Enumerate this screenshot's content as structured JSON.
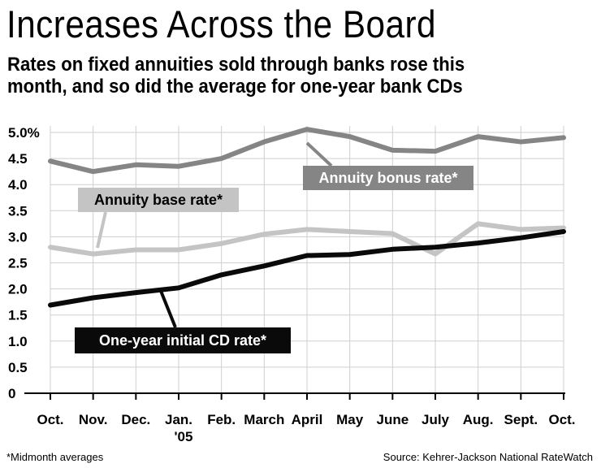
{
  "title": "Increases Across the Board",
  "subtitle_line1": "Rates on fixed annuities sold through banks rose this",
  "subtitle_line2": "month, and so did the average for one-year bank CDs",
  "footnote": "*Midmonth averages",
  "source": "Source: Kehrer-Jackson National RateWatch",
  "colors": {
    "bonus": "#858585",
    "base": "#c4c4c4",
    "cd": "#0a0a0a",
    "grid": "#cfcfcf"
  },
  "chart_data": {
    "type": "line",
    "title": "Increases Across the Board",
    "xlabel": "",
    "ylabel": "",
    "ylim": [
      0,
      5.0
    ],
    "grid": true,
    "y_ticks": [
      "5.0%",
      "4.5",
      "4.0",
      "3.5",
      "3.0",
      "2.5",
      "2.0",
      "1.5",
      "1.0",
      "0.5",
      "0"
    ],
    "categories": [
      "Oct.",
      "Nov.",
      "Dec.",
      "Jan.",
      "Feb.",
      "March",
      "April",
      "May",
      "June",
      "July",
      "Aug.",
      "Sept.",
      "Oct."
    ],
    "category_sublabels": [
      "",
      "",
      "",
      "'05",
      "",
      "",
      "",
      "",
      "",
      "",
      "",
      "",
      ""
    ],
    "series": [
      {
        "name": "Annuity bonus rate*",
        "color": "#858585",
        "values": [
          4.45,
          4.25,
          4.38,
          4.35,
          4.5,
          4.82,
          5.06,
          4.92,
          4.66,
          4.64,
          4.92,
          4.82,
          4.9
        ]
      },
      {
        "name": "Annuity base rate*",
        "color": "#c4c4c4",
        "values": [
          2.8,
          2.67,
          2.75,
          2.75,
          2.87,
          3.05,
          3.14,
          3.1,
          3.06,
          2.67,
          3.25,
          3.14,
          3.17
        ]
      },
      {
        "name": "One-year initial CD rate*",
        "color": "#0a0a0a",
        "values": [
          1.69,
          1.83,
          1.93,
          2.02,
          2.27,
          2.44,
          2.64,
          2.66,
          2.76,
          2.8,
          2.88,
          2.98,
          3.1
        ]
      }
    ]
  }
}
